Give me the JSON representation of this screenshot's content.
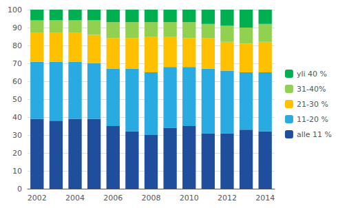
{
  "chart_data": {
    "type": "bar",
    "stacked": true,
    "categories": [
      "2002",
      null,
      "2004",
      null,
      "2006",
      null,
      "2008",
      null,
      "2010",
      null,
      "2012",
      null,
      "2014"
    ],
    "series": [
      {
        "name": "alle 11 %",
        "color": "#1f4e9c",
        "values": [
          39,
          38,
          39,
          39,
          35,
          32,
          30,
          34,
          35,
          31,
          31,
          33,
          32
        ]
      },
      {
        "name": "11-20 %",
        "color": "#29abe2",
        "values": [
          32,
          33,
          32,
          31,
          32,
          35,
          35,
          34,
          33,
          36,
          35,
          32,
          33
        ]
      },
      {
        "name": "21-30 %",
        "color": "#ffc000",
        "values": [
          16,
          16,
          16,
          16,
          17,
          17,
          20,
          17,
          16,
          17,
          16,
          16,
          17
        ]
      },
      {
        "name": "31-40%",
        "color": "#92d050",
        "values": [
          7,
          7,
          7,
          8,
          9,
          9,
          8,
          8,
          9,
          8,
          9,
          9,
          10
        ]
      },
      {
        "name": "yli 40 %",
        "color": "#00b050",
        "values": [
          6,
          6,
          6,
          6,
          7,
          7,
          7,
          7,
          7,
          8,
          9,
          10,
          8
        ]
      }
    ],
    "ylim": [
      0,
      100
    ],
    "yticks": [
      0,
      10,
      20,
      30,
      40,
      50,
      60,
      70,
      80,
      90,
      100
    ],
    "grid": true,
    "legend": "right"
  }
}
